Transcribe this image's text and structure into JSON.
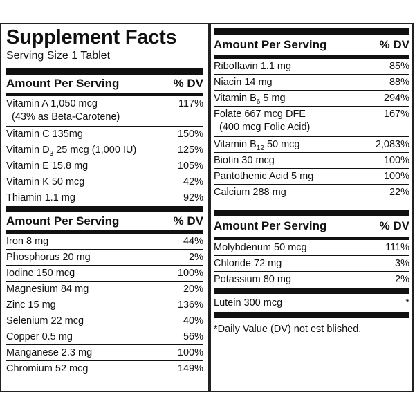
{
  "label": {
    "title": "Supplement Facts",
    "serving_size": "Serving Size 1 Tablet"
  },
  "table_header": {
    "amount": "Amount Per Serving",
    "dv": "% DV"
  },
  "left_section_1": [
    {
      "name": "Vitamin A 1,050 mcg",
      "sub": "(43% as Beta-Carotene)",
      "dv": "117%"
    },
    {
      "name": "Vitamin C 135mg",
      "dv": "150%"
    },
    {
      "name_pre": "Vitamin D",
      "name_subscript": "3",
      "name_post": " 25 mcg (1,000 IU)",
      "dv": "125%"
    },
    {
      "name": "Vitamin E  15.8 mg",
      "dv": "105%"
    },
    {
      "name": "Vitamin K 50 mcg",
      "dv": "42%"
    },
    {
      "name": "Thiamin 1.1 mg",
      "dv": "92%"
    }
  ],
  "left_section_2": [
    {
      "name": "Iron 8 mg",
      "dv": "44%"
    },
    {
      "name": "Phosphorus 20 mg",
      "dv": "2%"
    },
    {
      "name": "Iodine 150 mcg",
      "dv": "100%"
    },
    {
      "name": "Magnesium 84 mg",
      "dv": "20%"
    },
    {
      "name": "Zinc 15 mg",
      "dv": "136%"
    },
    {
      "name": "Selenium 22 mcg",
      "dv": "40%"
    },
    {
      "name": "Copper 0.5 mg",
      "dv": "56%"
    },
    {
      "name": "Manganese 2.3 mg",
      "dv": "100%"
    },
    {
      "name": "Chromium 52 mcg",
      "dv": "149%"
    }
  ],
  "right_section_1": [
    {
      "name": "Riboflavin 1.1 mg",
      "dv": "85%"
    },
    {
      "name": "Niacin 14 mg",
      "dv": "88%"
    },
    {
      "name_pre": "Vitamin B",
      "name_subscript": "6",
      "name_post": " 5 mg",
      "dv": "294%"
    },
    {
      "name": "Folate 667 mcg DFE",
      "sub": "(400 mcg Folic Acid)",
      "dv": "167%"
    },
    {
      "name_pre": "Vitamin B",
      "name_subscript": "12",
      "name_post": " 50 mcg",
      "dv": "2,083%"
    },
    {
      "name": "Biotin 30 mcg",
      "dv": "100%"
    },
    {
      "name": "Pantothenic Acid 5 mg",
      "dv": "100%"
    },
    {
      "name": "Calcium 288 mg",
      "dv": "22%"
    }
  ],
  "right_section_2": [
    {
      "name": "Molybdenum 50 mcg",
      "dv": "111%"
    },
    {
      "name": "Chloride 72 mg",
      "dv": "3%"
    },
    {
      "name": "Potassium 80 mg",
      "dv": "2%"
    }
  ],
  "right_section_3": [
    {
      "name": "Lutein 300 mcg",
      "dv": "*"
    }
  ],
  "footnote": "*Daily Value (DV) not est  blished."
}
